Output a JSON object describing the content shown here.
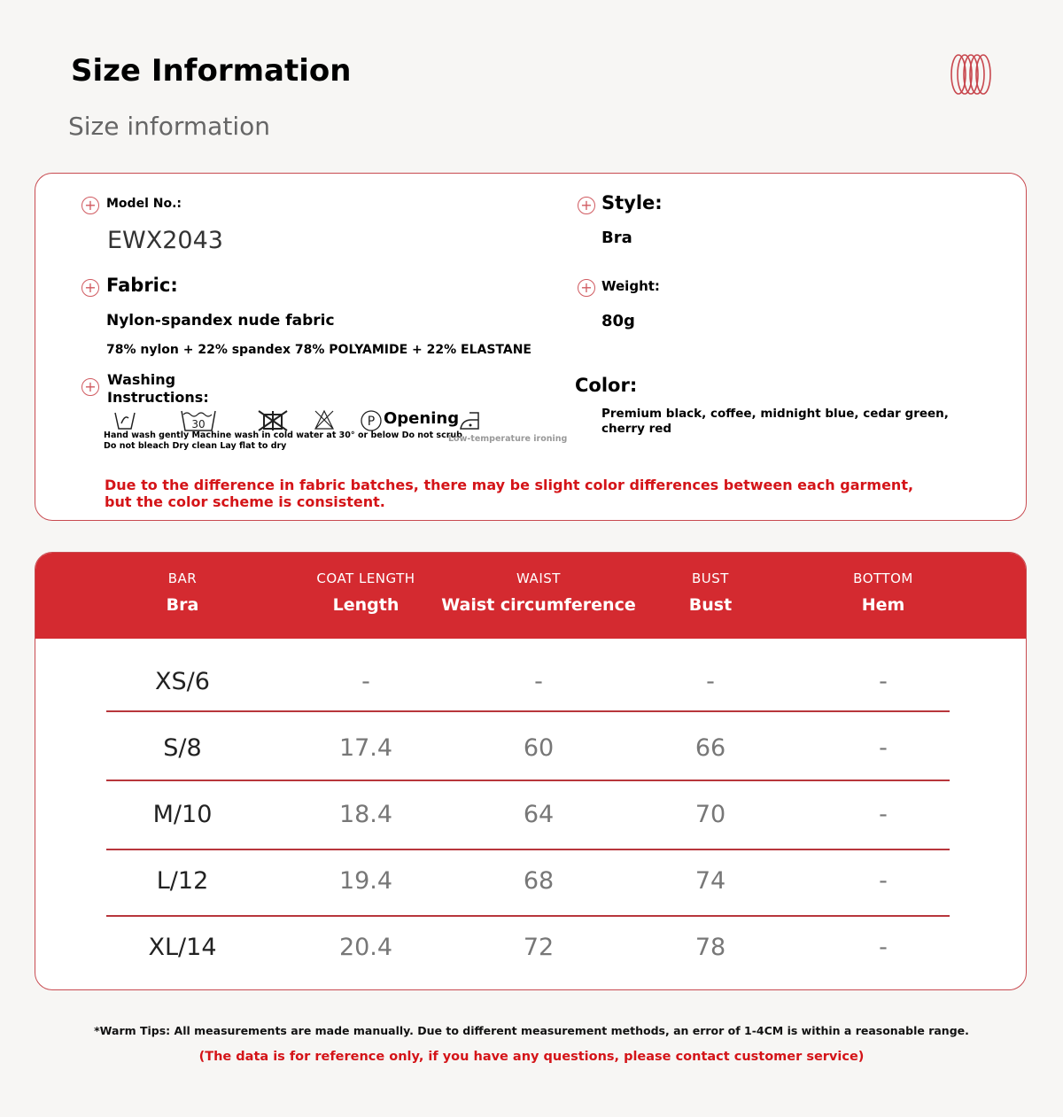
{
  "header": {
    "title": "Size Information",
    "subtitle": "Size information",
    "logo_icon": "coil-rings-icon"
  },
  "info": {
    "model_label": "Model No.:",
    "model_value": "EWX2043",
    "style_label": "Style:",
    "style_value": "Bra",
    "fabric_label": "Fabric:",
    "fabric_value": "Nylon-spandex nude fabric",
    "fabric_composition": "78% nylon + 22% spandex 78% POLYAMIDE + 22% ELASTANE",
    "weight_label": "Weight:",
    "weight_value": "80g",
    "washing_label_1": "Washing",
    "washing_label_2": "Instructions:",
    "washing_symbol_30": "30",
    "washing_symbol_p": "P",
    "washing_opening": "Opening",
    "washing_text_1": "Hand wash gently Machine wash in cold water at 30° or below Do not scrub",
    "washing_text_2": "Do not bleach Dry clean Lay flat to dry",
    "ironing_text": "Low-temperature ironing",
    "color_label": "Color:",
    "color_value": "Premium black, coffee, midnight blue, cedar green, cherry red",
    "notice_1": "Due to the difference in fabric batches, there may be slight color differences between each garment,",
    "notice_2": "but the color scheme is consistent."
  },
  "table": {
    "columns": [
      {
        "en": "BAR",
        "label": "Bra"
      },
      {
        "en": "COAT LENGTH",
        "label": "Length"
      },
      {
        "en": "WAIST",
        "label": "Waist circumference"
      },
      {
        "en": "BUST",
        "label": "Bust"
      },
      {
        "en": "BOTTOM",
        "label": "Hem"
      }
    ],
    "rows": [
      [
        "XS/6",
        "-",
        "-",
        "-",
        "-"
      ],
      [
        "S/8",
        "17.4",
        "60",
        "66",
        "-"
      ],
      [
        "M/10",
        "18.4",
        "64",
        "70",
        "-"
      ],
      [
        "L/12",
        "19.4",
        "68",
        "74",
        "-"
      ],
      [
        "XL/14",
        "20.4",
        "72",
        "78",
        "-"
      ]
    ]
  },
  "footer": {
    "tip": "*Warm Tips: All measurements are made manually. Due to different measurement methods, an error of 1-4CM is within a reasonable range.",
    "disclaimer": "(The data is for reference only, if you have any questions, please contact customer service)"
  },
  "colors": {
    "accent": "#d42a30",
    "notice": "#d41418",
    "background": "#f7f6f4"
  }
}
